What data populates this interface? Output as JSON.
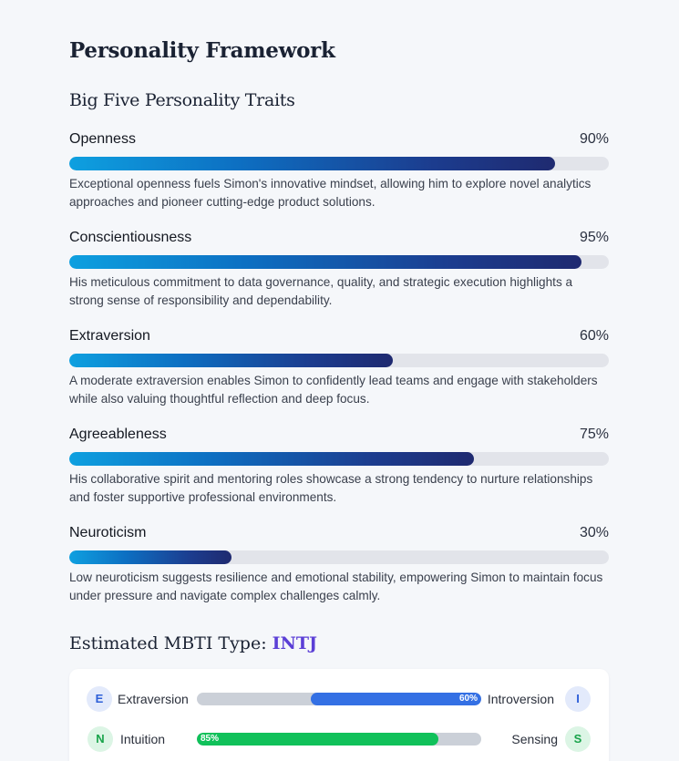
{
  "title": "Personality Framework",
  "big_five": {
    "heading": "Big Five Personality Traits",
    "traits": [
      {
        "name": "Openness",
        "percent_label": "90%",
        "value": 90,
        "description": "Exceptional openness fuels Simon's innovative mindset, allowing him to explore novel analytics approaches and pioneer cutting-edge product solutions."
      },
      {
        "name": "Conscientiousness",
        "percent_label": "95%",
        "value": 95,
        "description": "His meticulous commitment to data governance, quality, and strategic execution highlights a strong sense of responsibility and dependability."
      },
      {
        "name": "Extraversion",
        "percent_label": "60%",
        "value": 60,
        "description": "A moderate extraversion enables Simon to confidently lead teams and engage with stakeholders while also valuing thoughtful reflection and deep focus."
      },
      {
        "name": "Agreeableness",
        "percent_label": "75%",
        "value": 75,
        "description": "His collaborative spirit and mentoring roles showcase a strong tendency to nurture relationships and foster supportive professional environments."
      },
      {
        "name": "Neuroticism",
        "percent_label": "30%",
        "value": 30,
        "description": "Low neuroticism suggests resilience and emotional stability, empowering Simon to maintain focus under pressure and navigate complex challenges calmly."
      }
    ]
  },
  "mbti": {
    "heading_prefix": "Estimated MBTI Type:",
    "type": "INTJ",
    "dimensions": [
      {
        "left_letter": "E",
        "left_label": "Extraversion",
        "right_label": "Introversion",
        "right_letter": "I",
        "value_label": "60%",
        "value": 60,
        "side": "right",
        "fill_color": "#3470e4",
        "badge_color": "blue"
      },
      {
        "left_letter": "N",
        "left_label": "Intuition",
        "right_label": "Sensing",
        "right_letter": "S",
        "value_label": "85%",
        "value": 85,
        "side": "left",
        "fill_color": "#10c15a",
        "badge_color": "green"
      }
    ]
  },
  "colors": {
    "accent_purple": "#5b3fd6",
    "bar_gradient_start": "#0ea0e0",
    "bar_gradient_end": "#1f2a70",
    "track": "#e2e4ea"
  }
}
